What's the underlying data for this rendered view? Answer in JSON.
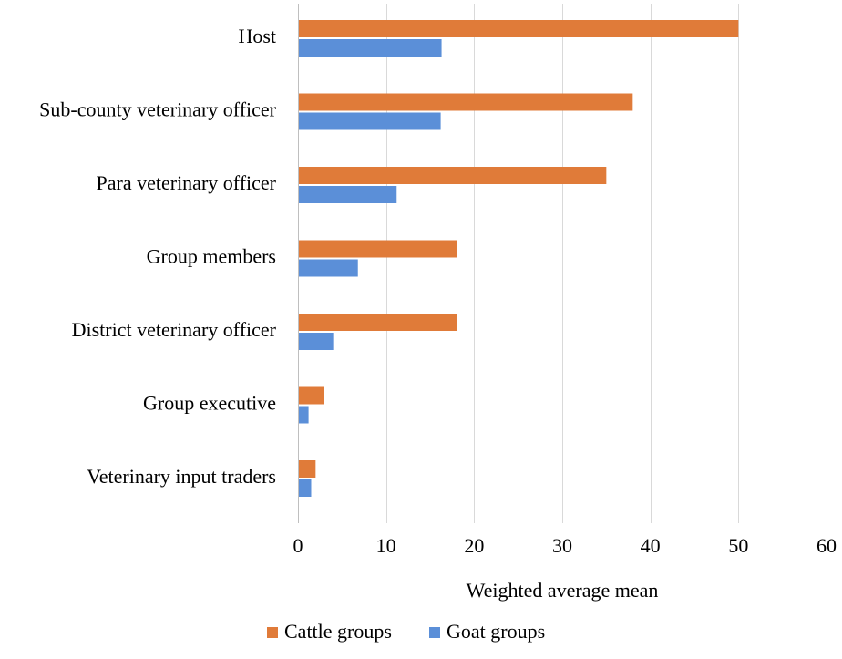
{
  "chart_data": {
    "type": "bar",
    "orientation": "horizontal",
    "categories": [
      "Host",
      "Sub-county veterinary officer",
      "Para veterinary officer",
      "Group members",
      "District veterinary officer",
      "Group executive",
      "Veterinary input traders"
    ],
    "series": [
      {
        "name": "Cattle groups",
        "color": "#E07B39",
        "values": [
          50,
          38,
          35,
          18,
          18,
          3,
          2
        ]
      },
      {
        "name": "Goat groups",
        "color": "#5B8FD8",
        "values": [
          16.3,
          16.2,
          11.2,
          6.8,
          4.0,
          1.2,
          1.5
        ]
      }
    ],
    "xlim": [
      0,
      60
    ],
    "xticks": [
      0,
      10,
      20,
      30,
      40,
      50,
      60
    ],
    "tick_labels": [
      "0",
      "10",
      "20",
      "30",
      "40",
      "50",
      "60"
    ],
    "xlabel": "Weighted average mean",
    "ylabel": "",
    "title": "",
    "grid": "vertical",
    "legend_position": "bottom"
  }
}
